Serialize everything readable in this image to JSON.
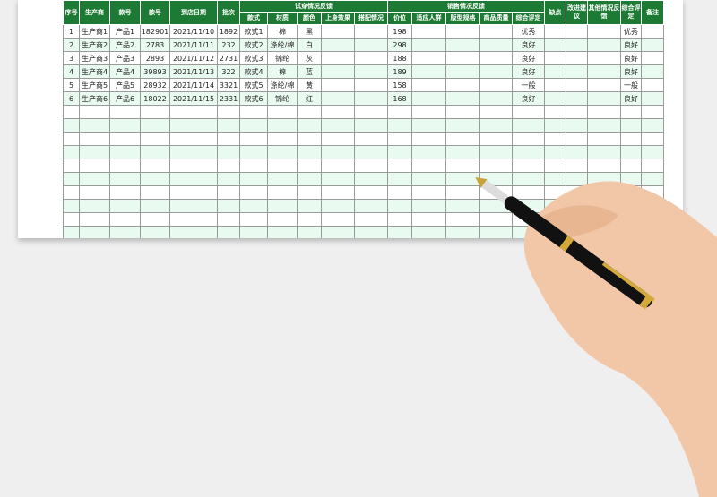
{
  "headers": {
    "seq": "序号",
    "maker": "生产商",
    "model1": "款号",
    "model2": "款号",
    "date": "到店日期",
    "batch": "批次",
    "trial": "试穿情况反馈",
    "sales": "销售情况反馈",
    "defect": "缺点",
    "improve": "改进建议",
    "other": "其他情况反馈",
    "rating": "综合评定",
    "note": "备注"
  },
  "sub": [
    "款式",
    "材质",
    "颜色",
    "上身效果",
    "搭配情况",
    "价位",
    "适应人群",
    "版型规格",
    "商品质量",
    "综合评定"
  ],
  "rows": [
    [
      "1",
      "生产商1",
      "产品1",
      "182901",
      "2021/11/10",
      "1892",
      "款式1",
      "棉",
      "黑",
      "",
      "",
      "198",
      "",
      "",
      "",
      "优秀",
      "",
      "",
      "",
      "优秀",
      ""
    ],
    [
      "2",
      "生产商2",
      "产品2",
      "2783",
      "2021/11/11",
      "232",
      "款式2",
      "涤纶/棉",
      "白",
      "",
      "",
      "298",
      "",
      "",
      "",
      "良好",
      "",
      "",
      "",
      "良好",
      ""
    ],
    [
      "3",
      "生产商3",
      "产品3",
      "2893",
      "2021/11/12",
      "2731",
      "款式3",
      "锦纶",
      "灰",
      "",
      "",
      "188",
      "",
      "",
      "",
      "良好",
      "",
      "",
      "",
      "良好",
      ""
    ],
    [
      "4",
      "生产商4",
      "产品4",
      "39893",
      "2021/11/13",
      "322",
      "款式4",
      "棉",
      "蓝",
      "",
      "",
      "189",
      "",
      "",
      "",
      "良好",
      "",
      "",
      "",
      "良好",
      ""
    ],
    [
      "5",
      "生产商5",
      "产品5",
      "28932",
      "2021/11/14",
      "3321",
      "款式5",
      "涤纶/棉",
      "黄",
      "",
      "",
      "158",
      "",
      "",
      "",
      "一般",
      "",
      "",
      "",
      "一般",
      ""
    ],
    [
      "6",
      "生产商6",
      "产品6",
      "18022",
      "2021/11/15",
      "2331",
      "款式6",
      "锦纶",
      "红",
      "",
      "",
      "168",
      "",
      "",
      "",
      "良好",
      "",
      "",
      "",
      "良好",
      ""
    ]
  ],
  "colors": {
    "header": "#1d7a34",
    "stripe": "#e9faf1"
  }
}
